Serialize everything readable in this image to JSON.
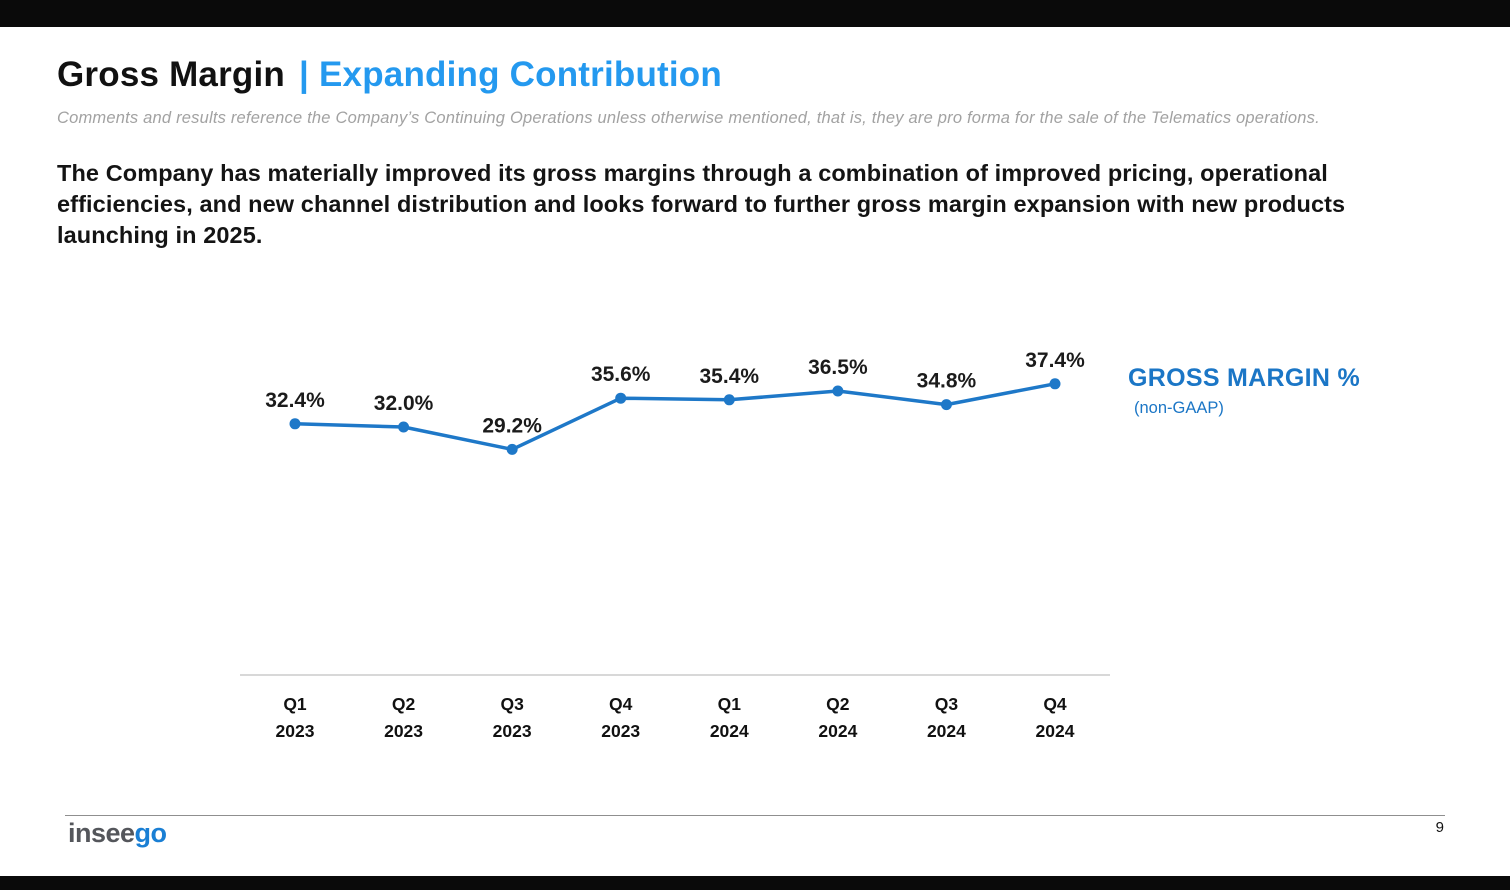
{
  "slide": {
    "title_black": "Gross Margin",
    "title_divider": "|",
    "title_blue": "Expanding Contribution",
    "subtitle": "Comments and results reference the Company’s Continuing Operations unless otherwise mentioned, that is, they are pro forma for the sale of the Telematics operations.",
    "body": "The Company has materially improved its gross margins through a combination of improved pricing, operational efficiencies, and new channel distribution and looks forward to further gross margin expansion with new products launching in 2025.",
    "page_number": "9",
    "logo": {
      "gray": "insee",
      "blue": "go"
    }
  },
  "legend": {
    "title": "GROSS MARGIN %",
    "subtitle": "(non-GAAP)"
  },
  "colors": {
    "title_accent": "#2499ef",
    "line": "#1e78c8",
    "point": "#1e78c8",
    "data_label": "#1b1b1b",
    "axis_line": "#cccccc",
    "category_label": "#111111",
    "legend_blue": "#1b76c6",
    "logo_gray": "#54565b",
    "logo_blue": "#1a7fd4"
  },
  "chart_data": {
    "type": "line",
    "series_name": "GROSS MARGIN % (non-GAAP)",
    "categories": [
      [
        "Q1",
        "2023"
      ],
      [
        "Q2",
        "2023"
      ],
      [
        "Q3",
        "2023"
      ],
      [
        "Q4",
        "2023"
      ],
      [
        "Q1",
        "2024"
      ],
      [
        "Q2",
        "2024"
      ],
      [
        "Q3",
        "2024"
      ],
      [
        "Q4",
        "2024"
      ]
    ],
    "values": [
      32.4,
      32.0,
      29.2,
      35.6,
      35.4,
      36.5,
      34.8,
      37.4
    ],
    "labels": [
      "32.4%",
      "32.0%",
      "29.2%",
      "35.6%",
      "35.4%",
      "36.5%",
      "34.8%",
      "37.4%"
    ],
    "title": "",
    "xlabel": "",
    "ylabel": "",
    "ylim": [
      26,
      40
    ],
    "grid": false,
    "legend_position": "right"
  }
}
